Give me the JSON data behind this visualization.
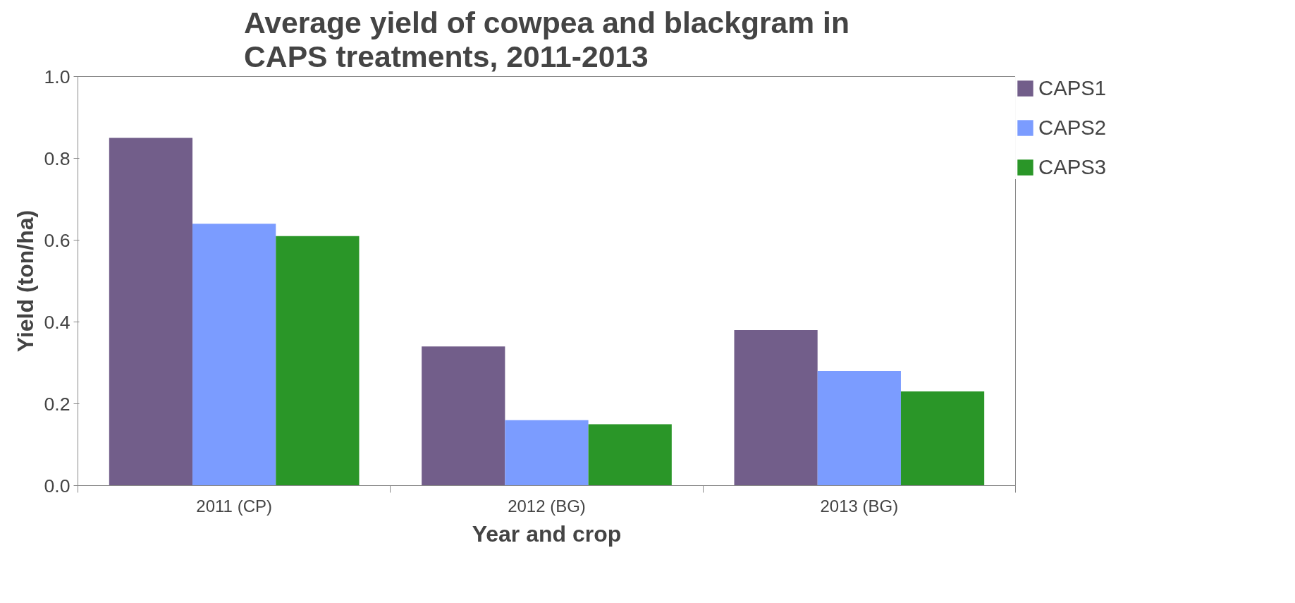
{
  "chart_data": {
    "type": "bar",
    "title": "Average yield of cowpea and blackgram in CAPS treatments, 2011-2013",
    "xlabel": "Year and crop",
    "ylabel": "Yield (ton/ha)",
    "categories": [
      "2011 (CP)",
      "2012 (BG)",
      "2013 (BG)"
    ],
    "series": [
      {
        "name": "CAPS1",
        "color": "#725e8a",
        "values": [
          0.85,
          0.34,
          0.38
        ]
      },
      {
        "name": "CAPS2",
        "color": "#7b9cff",
        "values": [
          0.64,
          0.16,
          0.28
        ]
      },
      {
        "name": "CAPS3",
        "color": "#2a9628",
        "values": [
          0.61,
          0.15,
          0.23
        ]
      }
    ],
    "ylim": [
      0,
      1.0
    ],
    "yticks": [
      {
        "value": 0,
        "label": "0.0"
      },
      {
        "value": 0.2,
        "label": "0.2"
      },
      {
        "value": 0.4,
        "label": "0.4"
      },
      {
        "value": 0.6,
        "label": "0.6"
      },
      {
        "value": 0.8,
        "label": "0.8"
      },
      {
        "value": 1.0,
        "label": "1.0"
      }
    ],
    "grid": false,
    "legend": "top right"
  }
}
